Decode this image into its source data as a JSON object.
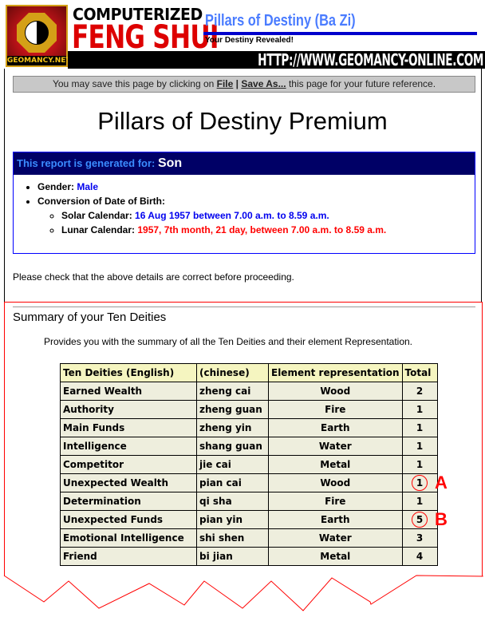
{
  "header": {
    "logo_text": "GEOMANCY.NET",
    "brand_line1": "COMPUTERIZED",
    "brand_line2": "FENG SHUI",
    "product_title": "Pillars of Destiny (Ba Zi)",
    "slogan": "Your Destiny Revealed!",
    "url": "HTTP://WWW.GEOMANCY-ONLINE.COM"
  },
  "save_notice": {
    "prefix": "You may save this page by clicking on ",
    "file": "File",
    "sep": " | ",
    "save_as": "Save As...",
    "suffix": " this page for your future reference."
  },
  "title": "Pillars of Destiny Premium",
  "report": {
    "label": "This report is generated for: ",
    "name": "Son",
    "gender_label": "Gender: ",
    "gender": "Male",
    "dob_label": "Conversion of Date of Birth:",
    "solar_label": "Solar Calendar: ",
    "solar": "16 Aug 1957 between 7.00 a.m. to 8.59 a.m.",
    "lunar_label": "Lunar Calendar: ",
    "lunar": "1957, 7th month, 21 day, between 7.00 a.m. to 8.59 a.m."
  },
  "check_text": "Please check that the above details are correct before proceeding.",
  "summary": {
    "heading": "Summary of your Ten Deities",
    "description": "Provides you with the summary of all the Ten Deities and their element Representation.",
    "columns": [
      "Ten Deities (English)",
      "(chinese)",
      "Element representation",
      "Total"
    ],
    "rows": [
      [
        "Earned Wealth",
        "zheng cai",
        "Wood",
        "2"
      ],
      [
        "Authority",
        "zheng guan",
        "Fire",
        "1"
      ],
      [
        "Main Funds",
        "zheng yin",
        "Earth",
        "1"
      ],
      [
        "Intelligence",
        "shang guan",
        "Water",
        "1"
      ],
      [
        "Competitor",
        "jie cai",
        "Metal",
        "1"
      ],
      [
        "Unexpected Wealth",
        "pian cai",
        "Wood",
        "1"
      ],
      [
        "Determination",
        "qi sha",
        "Fire",
        "1"
      ],
      [
        "Unexpected Funds",
        "pian yin",
        "Earth",
        "5"
      ],
      [
        "Emotional Intelligence",
        "shi shen",
        "Water",
        "3"
      ],
      [
        "Friend",
        "bi jian",
        "Metal",
        "4"
      ]
    ],
    "annotations": {
      "a": "A",
      "b": "B"
    }
  }
}
